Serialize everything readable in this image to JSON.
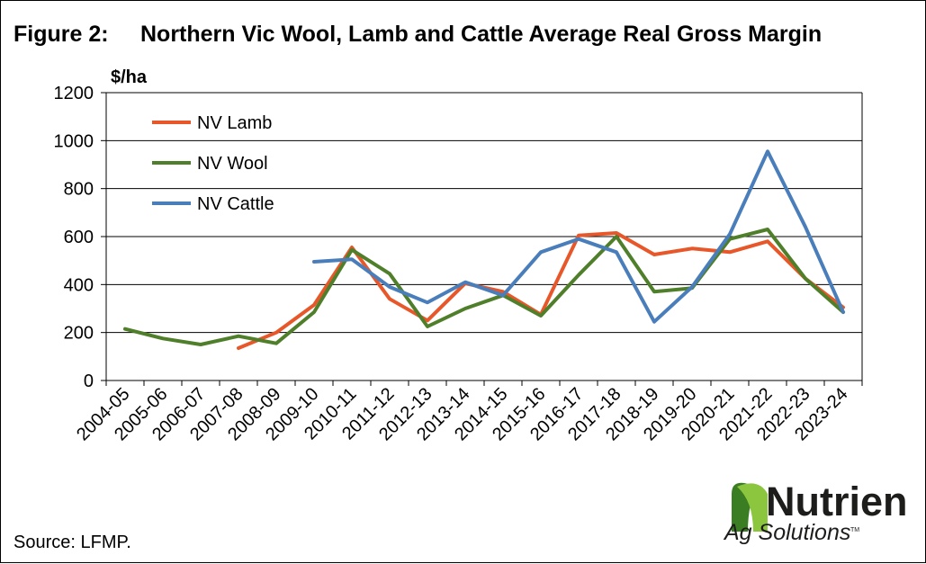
{
  "title_prefix": "Figure 2:",
  "title": "Northern Vic Wool, Lamb and Cattle Average Real Gross Margin",
  "source": "Source: LFMP.",
  "brand": {
    "name": "Nutrien",
    "subtitle": "Ag Solutions",
    "trademark": "TM",
    "leaf_dark": "#3a7d22",
    "leaf_light": "#8cc63f"
  },
  "chart_data": {
    "type": "line",
    "ylabel": "$/ha",
    "ylim": [
      0,
      1200
    ],
    "yticks": [
      "0",
      "200",
      "400",
      "600",
      "800",
      "1000",
      "1200"
    ],
    "grid": true,
    "legend_position": "top-left",
    "categories": [
      "2004-05",
      "2005-06",
      "2006-07",
      "2007-08",
      "2008-09",
      "2009-10",
      "2010-11",
      "2011-12",
      "2012-13",
      "2013-14",
      "2014-15",
      "2015-16",
      "2016-17",
      "2017-18",
      "2018-19",
      "2019-20",
      "2020-21",
      "2021-22",
      "2022-23",
      "2023-24"
    ],
    "series": [
      {
        "name": "NV Lamb",
        "color": "#e8572a",
        "values": [
          null,
          null,
          null,
          135,
          200,
          315,
          555,
          340,
          250,
          405,
          370,
          275,
          605,
          615,
          525,
          550,
          535,
          580,
          425,
          305
        ]
      },
      {
        "name": "NV Wool",
        "color": "#4f7f2a",
        "values": [
          215,
          175,
          150,
          185,
          155,
          285,
          545,
          445,
          225,
          300,
          355,
          270,
          440,
          600,
          370,
          385,
          590,
          630,
          425,
          285
        ]
      },
      {
        "name": "NV Cattle",
        "color": "#4a7ebb",
        "values": [
          null,
          null,
          null,
          null,
          null,
          495,
          505,
          390,
          325,
          410,
          355,
          535,
          590,
          535,
          245,
          390,
          610,
          955,
          640,
          285
        ]
      }
    ]
  }
}
